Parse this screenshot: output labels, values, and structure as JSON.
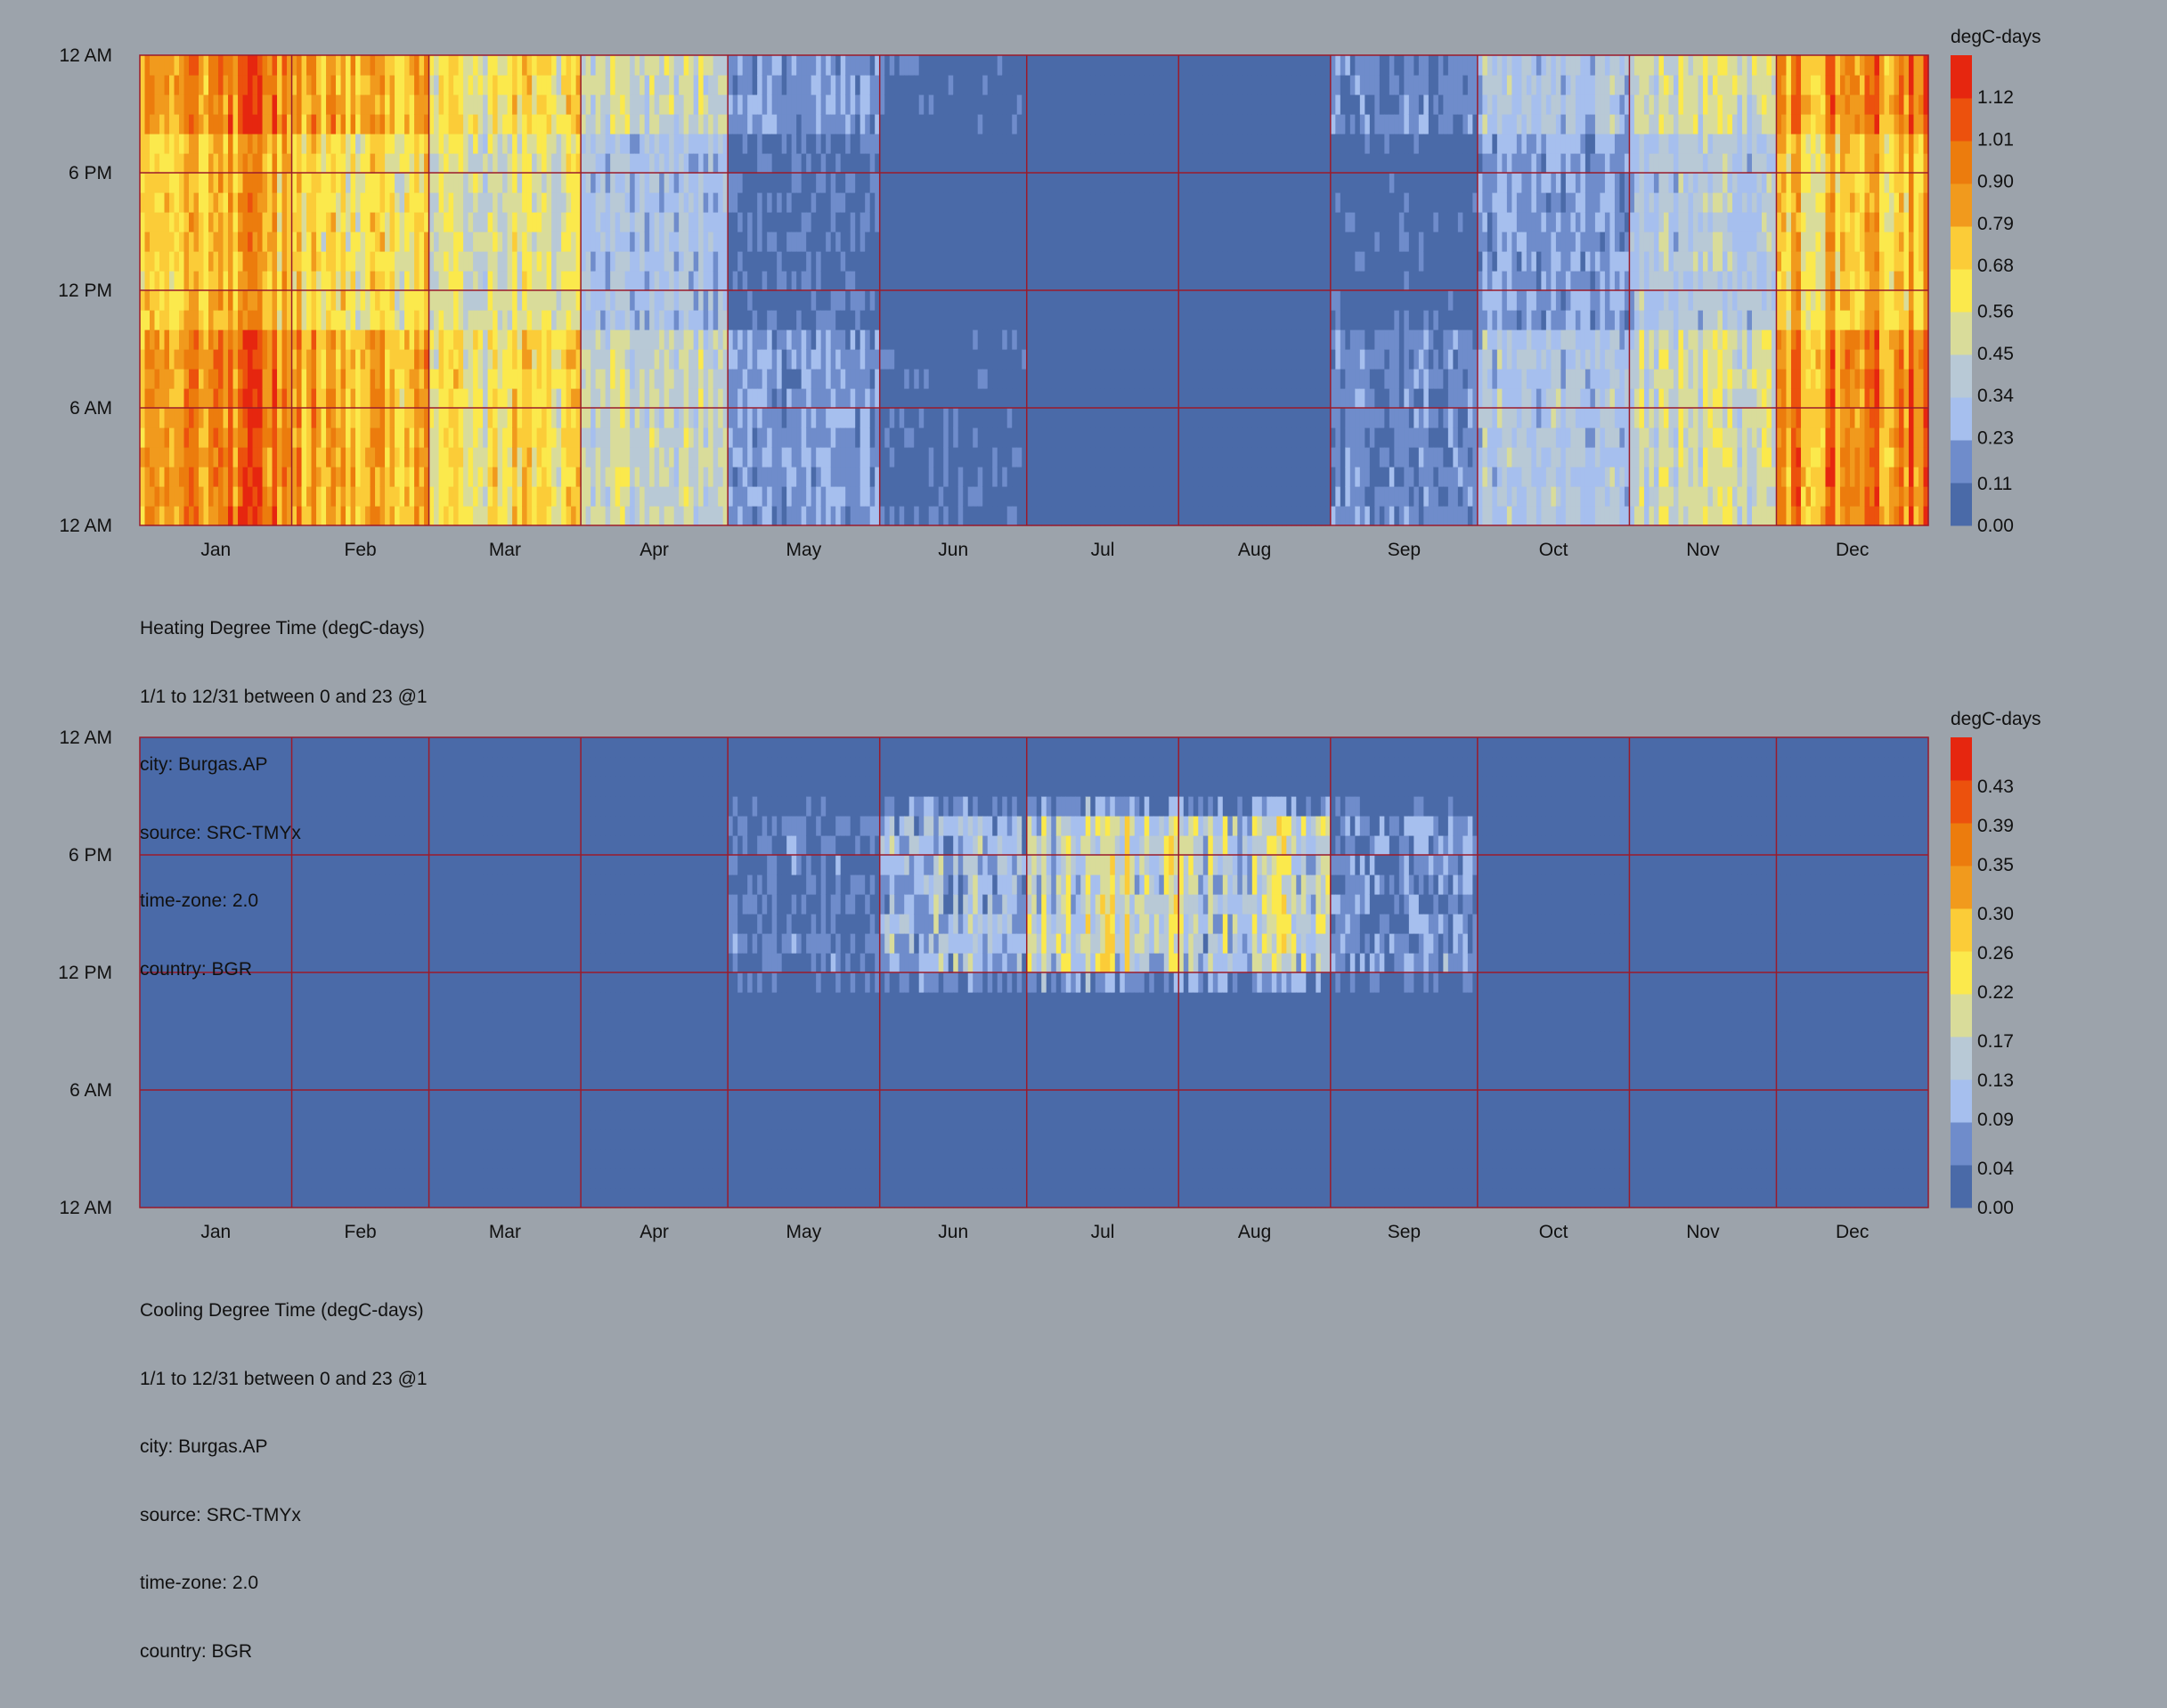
{
  "chart_data": [
    {
      "type": "heatmap",
      "x_months": [
        "Jan",
        "Feb",
        "Mar",
        "Apr",
        "May",
        "Jun",
        "Jul",
        "Aug",
        "Sep",
        "Oct",
        "Nov",
        "Dec"
      ],
      "y_ticks": [
        "12 AM",
        "6 PM",
        "12 PM",
        "6 AM",
        "12 AM"
      ],
      "colorbar": {
        "title": "degC-days",
        "ticks": [
          "1.12",
          "1.01",
          "0.90",
          "0.79",
          "0.68",
          "0.56",
          "0.45",
          "0.34",
          "0.23",
          "0.11",
          "0.00"
        ],
        "min": 0,
        "max": 1.23
      },
      "monthly_mean_profile": [
        {
          "month": "Jan",
          "day": 0.78,
          "night": 0.95
        },
        {
          "month": "Feb",
          "day": 0.62,
          "night": 0.78
        },
        {
          "month": "Mar",
          "day": 0.5,
          "night": 0.62
        },
        {
          "month": "Apr",
          "day": 0.3,
          "night": 0.44
        },
        {
          "month": "May",
          "day": 0.08,
          "night": 0.2
        },
        {
          "month": "Jun",
          "day": 0.0,
          "night": 0.05
        },
        {
          "month": "Jul",
          "day": 0.0,
          "night": 0.0
        },
        {
          "month": "Aug",
          "day": 0.0,
          "night": 0.0
        },
        {
          "month": "Sep",
          "day": 0.04,
          "night": 0.16
        },
        {
          "month": "Oct",
          "day": 0.2,
          "night": 0.34
        },
        {
          "month": "Nov",
          "day": 0.34,
          "night": 0.46
        },
        {
          "month": "Dec",
          "day": 0.72,
          "night": 0.9
        }
      ],
      "caption": [
        "Heating Degree Time (degC-days)",
        "1/1 to 12/31 between 0 and 23 @1",
        "city: Burgas.AP",
        "source: SRC-TMYx",
        "time-zone: 2.0",
        "country: BGR"
      ]
    },
    {
      "type": "heatmap",
      "x_months": [
        "Jan",
        "Feb",
        "Mar",
        "Apr",
        "May",
        "Jun",
        "Jul",
        "Aug",
        "Sep",
        "Oct",
        "Nov",
        "Dec"
      ],
      "y_ticks": [
        "12 AM",
        "6 PM",
        "12 PM",
        "6 AM",
        "12 AM"
      ],
      "colorbar": {
        "title": "degC-days",
        "ticks": [
          "0.43",
          "0.39",
          "0.35",
          "0.30",
          "0.26",
          "0.22",
          "0.17",
          "0.13",
          "0.09",
          "0.04",
          "0.00"
        ],
        "min": 0,
        "max": 0.48
      },
      "monthly_mean_profile": [
        {
          "month": "Jan",
          "afternoon": 0.0
        },
        {
          "month": "Feb",
          "afternoon": 0.0
        },
        {
          "month": "Mar",
          "afternoon": 0.0
        },
        {
          "month": "Apr",
          "afternoon": 0.0
        },
        {
          "month": "May",
          "afternoon": 0.03
        },
        {
          "month": "Jun",
          "afternoon": 0.1
        },
        {
          "month": "Jul",
          "afternoon": 0.18
        },
        {
          "month": "Aug",
          "afternoon": 0.16
        },
        {
          "month": "Sep",
          "afternoon": 0.06
        },
        {
          "month": "Oct",
          "afternoon": 0.0
        },
        {
          "month": "Nov",
          "afternoon": 0.0
        },
        {
          "month": "Dec",
          "afternoon": 0.0
        }
      ],
      "caption": [
        "Cooling Degree Time (degC-days)",
        "1/1 to 12/31 between 0 and 23 @1",
        "city: Burgas.AP",
        "source: SRC-TMYx",
        "time-zone: 2.0",
        "country: BGR"
      ]
    }
  ],
  "colors": {
    "background": "#9ca3ab",
    "gridline": "#9b1b2b",
    "scale": [
      "#4a6aa8",
      "#6f8ccb",
      "#a6bfee",
      "#b8c9d6",
      "#d9dc9a",
      "#fbe94c",
      "#fbcc38",
      "#f19a1d",
      "#ec7c0d",
      "#ec510d",
      "#e6260f"
    ]
  }
}
